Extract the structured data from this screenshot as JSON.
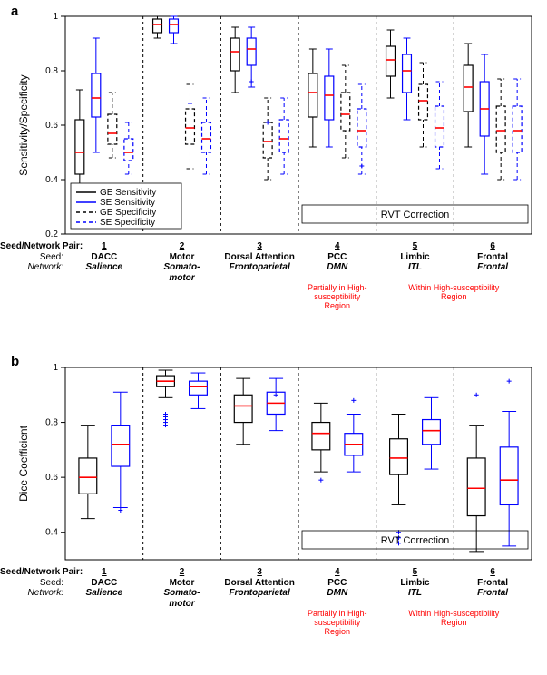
{
  "figure": {
    "panel_a": {
      "label": "a",
      "type": "boxplot",
      "ylabel": "Sensitivity/Specificity",
      "ylim": [
        0.2,
        1.0
      ],
      "yticks": [
        0.2,
        0.4,
        0.6,
        0.8,
        1.0
      ],
      "ytick_labels": [
        "0.2",
        "0.4",
        "0.6",
        "0.8",
        "1"
      ],
      "label_fontsize": 12,
      "tick_fontsize": 10,
      "background_color": "#ffffff",
      "axis_color": "#000000",
      "grid_color": "#000000",
      "grid_dash": "3,3",
      "median_color": "#ff0000",
      "outlier_color": "#0000ff",
      "series_colors": {
        "GE_Sensitivity": "#000000",
        "SE_Sensitivity": "#0000ff",
        "GE_Specificity": "#000000",
        "SE_Specificity": "#0000ff"
      },
      "series_dash": {
        "GE_Sensitivity": "none",
        "SE_Sensitivity": "none",
        "GE_Specificity": "4,3",
        "SE_Specificity": "4,3"
      },
      "box_width": 0.12,
      "groups": [
        {
          "boxes": [
            {
              "series": "GE_Sensitivity",
              "q1": 0.42,
              "median": 0.5,
              "q3": 0.62,
              "wlo": 0.38,
              "whi": 0.73,
              "outliers": []
            },
            {
              "series": "SE_Sensitivity",
              "q1": 0.63,
              "median": 0.7,
              "q3": 0.79,
              "wlo": 0.5,
              "whi": 0.92,
              "outliers": []
            },
            {
              "series": "GE_Specificity",
              "q1": 0.53,
              "median": 0.57,
              "q3": 0.64,
              "wlo": 0.48,
              "whi": 0.72,
              "outliers": []
            },
            {
              "series": "SE_Specificity",
              "q1": 0.47,
              "median": 0.5,
              "q3": 0.55,
              "wlo": 0.42,
              "whi": 0.61,
              "outliers": []
            }
          ]
        },
        {
          "boxes": [
            {
              "series": "GE_Sensitivity",
              "q1": 0.94,
              "median": 0.97,
              "q3": 0.99,
              "wlo": 0.92,
              "whi": 1.0,
              "outliers": []
            },
            {
              "series": "SE_Sensitivity",
              "q1": 0.94,
              "median": 0.97,
              "q3": 0.99,
              "wlo": 0.9,
              "whi": 1.0,
              "outliers": []
            },
            {
              "series": "GE_Specificity",
              "q1": 0.53,
              "median": 0.59,
              "q3": 0.66,
              "wlo": 0.44,
              "whi": 0.75,
              "outliers": [
                0.68
              ]
            },
            {
              "series": "SE_Specificity",
              "q1": 0.5,
              "median": 0.55,
              "q3": 0.61,
              "wlo": 0.42,
              "whi": 0.7,
              "outliers": []
            }
          ]
        },
        {
          "boxes": [
            {
              "series": "GE_Sensitivity",
              "q1": 0.8,
              "median": 0.87,
              "q3": 0.92,
              "wlo": 0.72,
              "whi": 0.96,
              "outliers": []
            },
            {
              "series": "SE_Sensitivity",
              "q1": 0.82,
              "median": 0.88,
              "q3": 0.92,
              "wlo": 0.74,
              "whi": 0.96,
              "outliers": [
                0.76
              ]
            },
            {
              "series": "GE_Specificity",
              "q1": 0.48,
              "median": 0.54,
              "q3": 0.61,
              "wlo": 0.4,
              "whi": 0.7,
              "outliers": [
                0.61
              ]
            },
            {
              "series": "SE_Specificity",
              "q1": 0.5,
              "median": 0.55,
              "q3": 0.62,
              "wlo": 0.42,
              "whi": 0.7,
              "outliers": []
            }
          ]
        },
        {
          "boxes": [
            {
              "series": "GE_Sensitivity",
              "q1": 0.63,
              "median": 0.72,
              "q3": 0.79,
              "wlo": 0.52,
              "whi": 0.88,
              "outliers": []
            },
            {
              "series": "SE_Sensitivity",
              "q1": 0.62,
              "median": 0.71,
              "q3": 0.78,
              "wlo": 0.52,
              "whi": 0.88,
              "outliers": []
            },
            {
              "series": "GE_Specificity",
              "q1": 0.58,
              "median": 0.64,
              "q3": 0.72,
              "wlo": 0.48,
              "whi": 0.82,
              "outliers": []
            },
            {
              "series": "SE_Specificity",
              "q1": 0.52,
              "median": 0.58,
              "q3": 0.66,
              "wlo": 0.42,
              "whi": 0.75,
              "outliers": [
                0.45
              ]
            }
          ]
        },
        {
          "boxes": [
            {
              "series": "GE_Sensitivity",
              "q1": 0.78,
              "median": 0.84,
              "q3": 0.89,
              "wlo": 0.7,
              "whi": 0.95,
              "outliers": []
            },
            {
              "series": "SE_Sensitivity",
              "q1": 0.72,
              "median": 0.8,
              "q3": 0.86,
              "wlo": 0.62,
              "whi": 0.92,
              "outliers": []
            },
            {
              "series": "GE_Specificity",
              "q1": 0.62,
              "median": 0.69,
              "q3": 0.75,
              "wlo": 0.52,
              "whi": 0.83,
              "outliers": []
            },
            {
              "series": "SE_Specificity",
              "q1": 0.52,
              "median": 0.59,
              "q3": 0.67,
              "wlo": 0.44,
              "whi": 0.76,
              "outliers": []
            }
          ]
        },
        {
          "boxes": [
            {
              "series": "GE_Sensitivity",
              "q1": 0.65,
              "median": 0.74,
              "q3": 0.82,
              "wlo": 0.52,
              "whi": 0.9,
              "outliers": []
            },
            {
              "series": "SE_Sensitivity",
              "q1": 0.56,
              "median": 0.66,
              "q3": 0.76,
              "wlo": 0.42,
              "whi": 0.86,
              "outliers": []
            },
            {
              "series": "GE_Specificity",
              "q1": 0.5,
              "median": 0.58,
              "q3": 0.67,
              "wlo": 0.4,
              "whi": 0.77,
              "outliers": []
            },
            {
              "series": "SE_Specificity",
              "q1": 0.5,
              "median": 0.58,
              "q3": 0.67,
              "wlo": 0.4,
              "whi": 0.77,
              "outliers": []
            }
          ]
        }
      ],
      "legend": {
        "items": [
          {
            "label": "GE Sensitivity",
            "color": "#000000",
            "dash": "none"
          },
          {
            "label": "SE Sensitivity",
            "color": "#0000ff",
            "dash": "none"
          },
          {
            "label": "GE Specificity",
            "color": "#000000",
            "dash": "4,3"
          },
          {
            "label": "SE Specificity",
            "color": "#0000ff",
            "dash": "4,3"
          }
        ],
        "fontsize": 10
      },
      "rvt_label": "RVT Correction"
    },
    "panel_b": {
      "label": "b",
      "type": "boxplot",
      "ylabel": "Dice Coefficient",
      "ylim": [
        0.3,
        1.0
      ],
      "yticks": [
        0.4,
        0.6,
        0.8,
        1.0
      ],
      "ytick_labels": [
        "0.4",
        "0.6",
        "0.8",
        "1"
      ],
      "label_fontsize": 12,
      "tick_fontsize": 10,
      "background_color": "#ffffff",
      "axis_color": "#000000",
      "grid_color": "#000000",
      "grid_dash": "3,3",
      "median_color": "#ff0000",
      "outlier_color": "#0000ff",
      "series_colors": {
        "GE": "#000000",
        "SE": "#0000ff"
      },
      "box_width": 0.2,
      "groups": [
        {
          "boxes": [
            {
              "series": "GE",
              "q1": 0.54,
              "median": 0.6,
              "q3": 0.67,
              "wlo": 0.45,
              "whi": 0.79,
              "outliers": []
            },
            {
              "series": "SE",
              "q1": 0.64,
              "median": 0.72,
              "q3": 0.79,
              "wlo": 0.49,
              "whi": 0.91,
              "outliers": [
                0.48
              ]
            }
          ]
        },
        {
          "boxes": [
            {
              "series": "GE",
              "q1": 0.93,
              "median": 0.95,
              "q3": 0.97,
              "wlo": 0.89,
              "whi": 0.99,
              "outliers": [
                0.83,
                0.82,
                0.81,
                0.8,
                0.79
              ]
            },
            {
              "series": "SE",
              "q1": 0.9,
              "median": 0.93,
              "q3": 0.95,
              "wlo": 0.85,
              "whi": 0.98,
              "outliers": []
            }
          ]
        },
        {
          "boxes": [
            {
              "series": "GE",
              "q1": 0.8,
              "median": 0.86,
              "q3": 0.9,
              "wlo": 0.72,
              "whi": 0.96,
              "outliers": []
            },
            {
              "series": "SE",
              "q1": 0.83,
              "median": 0.87,
              "q3": 0.91,
              "wlo": 0.77,
              "whi": 0.96,
              "outliers": [
                0.9
              ]
            }
          ]
        },
        {
          "boxes": [
            {
              "series": "GE",
              "q1": 0.7,
              "median": 0.76,
              "q3": 0.8,
              "wlo": 0.62,
              "whi": 0.87,
              "outliers": [
                0.59
              ]
            },
            {
              "series": "SE",
              "q1": 0.68,
              "median": 0.72,
              "q3": 0.76,
              "wlo": 0.62,
              "whi": 0.83,
              "outliers": [
                0.88
              ]
            }
          ]
        },
        {
          "boxes": [
            {
              "series": "GE",
              "q1": 0.61,
              "median": 0.67,
              "q3": 0.74,
              "wlo": 0.5,
              "whi": 0.83,
              "outliers": [
                0.4,
                0.38,
                0.36
              ]
            },
            {
              "series": "SE",
              "q1": 0.72,
              "median": 0.77,
              "q3": 0.81,
              "wlo": 0.63,
              "whi": 0.89,
              "outliers": []
            }
          ]
        },
        {
          "boxes": [
            {
              "series": "GE",
              "q1": 0.46,
              "median": 0.56,
              "q3": 0.67,
              "wlo": 0.33,
              "whi": 0.79,
              "outliers": [
                0.9
              ]
            },
            {
              "series": "SE",
              "q1": 0.5,
              "median": 0.59,
              "q3": 0.71,
              "wlo": 0.35,
              "whi": 0.84,
              "outliers": [
                0.95
              ]
            }
          ]
        }
      ],
      "rvt_label": "RVT Correction"
    },
    "xaxis": {
      "heading_pair": "Seed/Network Pair:",
      "heading_seed": "Seed:",
      "heading_network": "Network:",
      "pairs": [
        "1",
        "2",
        "3",
        "4",
        "5",
        "6"
      ],
      "seeds": [
        "DACC",
        "Motor",
        "Dorsal Attention",
        "PCC",
        "Limbic",
        "Frontal"
      ],
      "networks": [
        "Salience",
        "Somato-\nmotor",
        "Frontoparietal",
        "DMN",
        "ITL",
        "Frontal"
      ],
      "notes": [
        "",
        "",
        "",
        "Partially in High-\nsusceptibility\nRegion",
        "Within High-susceptibility\nRegion",
        ""
      ],
      "note_span": [
        0,
        0,
        0,
        1,
        2,
        0
      ]
    }
  }
}
